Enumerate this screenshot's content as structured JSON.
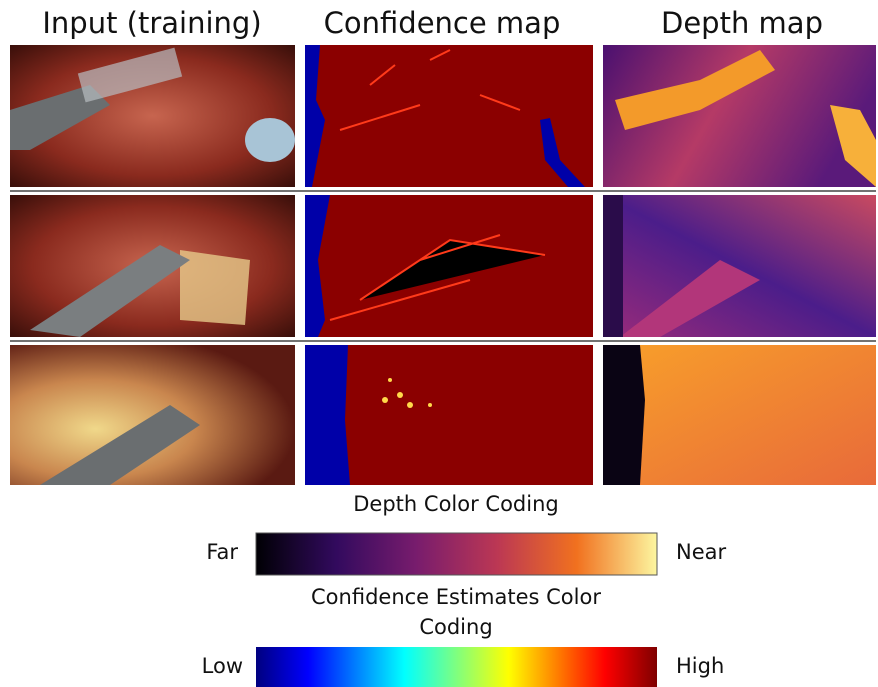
{
  "headers": [
    "Input (training)",
    "Confidence map",
    "Depth map"
  ],
  "depth_legend": {
    "title": "Depth Color Coding",
    "low_label": "Far",
    "high_label": "Near"
  },
  "confidence_legend": {
    "title": "Confidence Estimates Color Coding",
    "low_label": "Low",
    "high_label": "High"
  }
}
